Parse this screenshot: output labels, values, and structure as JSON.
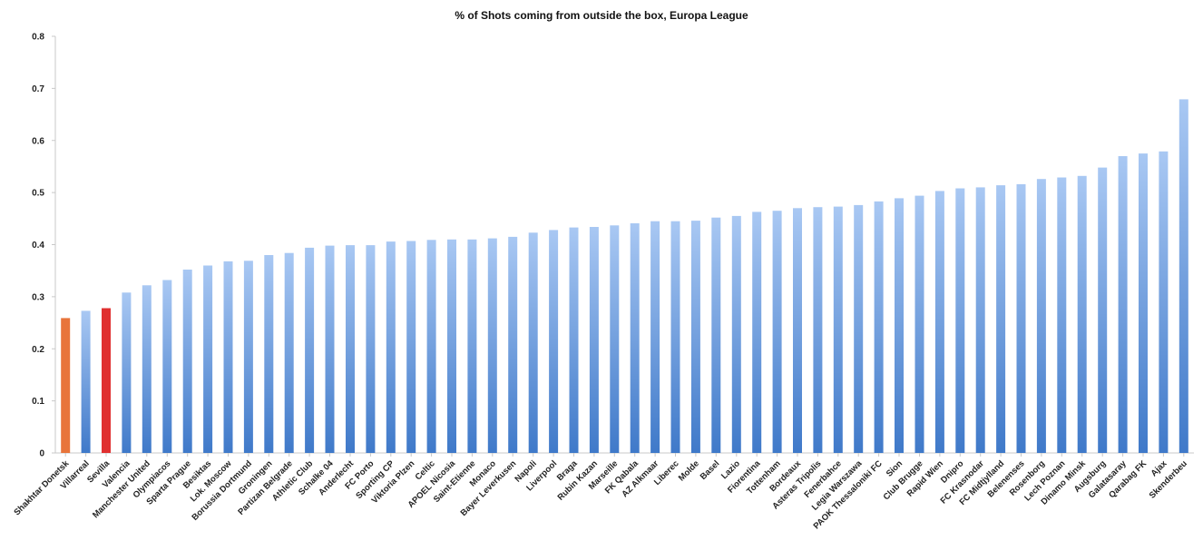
{
  "chart_data": {
    "type": "bar",
    "title": "% of Shots coming from outside the box, Europa League",
    "xlabel": "",
    "ylabel": "",
    "ylim": [
      0,
      0.8
    ],
    "yticks": [
      "0",
      "0.1",
      "0.2",
      "0.3",
      "0.4",
      "0.5",
      "0.6",
      "0.7",
      "0.8"
    ],
    "grid": false,
    "legend": "none",
    "colors": {
      "default_top": "#a9c8f3",
      "default_bottom": "#3f79c9",
      "orange": "#e8743b",
      "red": "#e03030"
    },
    "categories": [
      "Shakhtar Donetsk",
      "Villarreal",
      "Sevilla",
      "Valencia",
      "Manchester United",
      "Olympiacos",
      "Sparta Prague",
      "Besiktas",
      "Lok. Moscow",
      "Borussia Dortmund",
      "Groningen",
      "Partizan Belgrade",
      "Athletic Club",
      "Schalke 04",
      "Anderlecht",
      "FC Porto",
      "Sporting CP",
      "Viktoria Plzen",
      "Celtic",
      "APOEL Nicosia",
      "Saint-Etienne",
      "Monaco",
      "Bayer Leverkusen",
      "Napoli",
      "Liverpool",
      "Braga",
      "Rubin Kazan",
      "Marseille",
      "FK Qabala",
      "AZ Alkmaar",
      "Liberec",
      "Molde",
      "Basel",
      "Lazio",
      "Fiorentina",
      "Tottenham",
      "Bordeaux",
      "Asteras Tripolis",
      "Fenerbahce",
      "Legia Warszawa",
      "PAOK Thessaloniki FC",
      "Sion",
      "Club Brugge",
      "Rapid Wien",
      "Dnipro",
      "FC Krasnodar",
      "FC Midtjylland",
      "Belenenses",
      "Rosenborg",
      "Lech Poznan",
      "Dinamo Minsk",
      "Augsburg",
      "Galatasaray",
      "Qarabag FK",
      "Ajax",
      "Skenderbeu"
    ],
    "values": [
      0.259,
      0.273,
      0.278,
      0.308,
      0.322,
      0.332,
      0.352,
      0.36,
      0.368,
      0.369,
      0.38,
      0.384,
      0.394,
      0.398,
      0.399,
      0.399,
      0.406,
      0.407,
      0.409,
      0.41,
      0.41,
      0.412,
      0.415,
      0.423,
      0.428,
      0.433,
      0.434,
      0.437,
      0.441,
      0.445,
      0.445,
      0.446,
      0.452,
      0.455,
      0.463,
      0.465,
      0.47,
      0.472,
      0.473,
      0.476,
      0.483,
      0.489,
      0.494,
      0.503,
      0.508,
      0.51,
      0.514,
      0.516,
      0.526,
      0.529,
      0.532,
      0.548,
      0.57,
      0.575,
      0.579,
      0.679
    ],
    "highlights": {
      "0": "orange",
      "2": "red"
    }
  }
}
